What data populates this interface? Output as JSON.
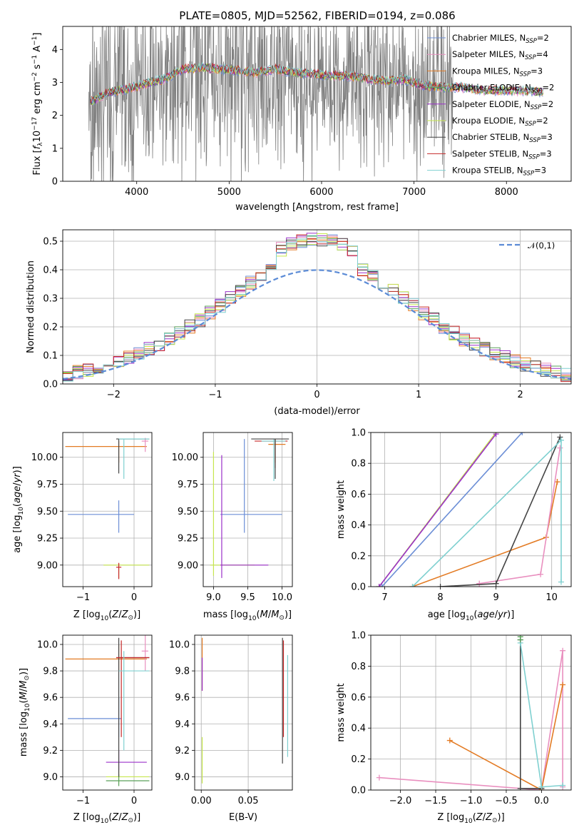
{
  "figure": {
    "title": "PLATE=0805, MJD=52562, FIBERID=0194, z=0.086"
  },
  "colors": {
    "Chabrier MILES": "#6b8ed6",
    "Salpeter MILES": "#e98fbf",
    "Kroupa MILES": "#e37b24",
    "Chabrier ELODIE": "#5aa05a",
    "Salpeter ELODIE": "#9b30c9",
    "Kroupa ELODIE": "#c6e64d",
    "Chabrier STELIB": "#444444",
    "Salpeter STELIB": "#c62828",
    "Kroupa STELIB": "#7fd0d0",
    "data": "#808080",
    "normal": "#5b8bd6"
  },
  "chart_data": [
    {
      "id": "spectrum",
      "type": "line",
      "xlabel": "wavelength [Angstrom, rest frame]",
      "ylabel": "Flux [f_λ 10^-17 erg cm^-2 s^-1 A^-1]",
      "xlim": [
        3200,
        8700
      ],
      "ylim": [
        0,
        4.7
      ],
      "xticks": [
        4000,
        5000,
        6000,
        7000,
        8000
      ],
      "yticks": [
        0,
        1,
        2,
        3,
        4
      ],
      "legend_position": "right",
      "legend": [
        {
          "model": "Chabrier MILES",
          "n": "2"
        },
        {
          "model": "Salpeter MILES",
          "n": "4"
        },
        {
          "model": "Kroupa MILES",
          "n": "3"
        },
        {
          "model": "Chabrier ELODIE",
          "n": "2"
        },
        {
          "model": "Salpeter ELODIE",
          "n": "2"
        },
        {
          "model": "Kroupa ELODIE",
          "n": "2"
        },
        {
          "model": "Chabrier STELIB",
          "n": "3"
        },
        {
          "model": "Salpeter STELIB",
          "n": "3"
        },
        {
          "model": "Kroupa STELIB",
          "n": "3"
        }
      ],
      "model_continuum": {
        "x": [
          3500,
          3700,
          3900,
          4100,
          4300,
          4500,
          4700,
          4900,
          5100,
          5300,
          5500,
          5700,
          5900,
          6100,
          6300,
          6500,
          6700,
          6900,
          7100,
          7300,
          7500,
          7800,
          8100,
          8400
        ],
        "y": [
          2.4,
          2.7,
          2.8,
          2.95,
          3.1,
          3.4,
          3.45,
          3.4,
          3.35,
          3.3,
          3.4,
          3.3,
          3.25,
          3.2,
          3.2,
          3.1,
          3.05,
          3.1,
          2.9,
          2.85,
          2.85,
          2.75,
          2.75,
          2.7
        ]
      }
    },
    {
      "id": "residuals",
      "type": "line",
      "xlabel": "(data-model)/error",
      "ylabel": "Normed distribution",
      "xlim": [
        -2.5,
        2.5
      ],
      "ylim": [
        0,
        0.54
      ],
      "xticks": [
        -2,
        -1,
        0,
        1,
        2
      ],
      "yticks": [
        0.0,
        0.1,
        0.2,
        0.3,
        0.4,
        0.5
      ],
      "grid": true,
      "legend_position": "top-right",
      "legend": "𝒩(0,1)"
    },
    {
      "id": "age-vs-Z",
      "type": "scatter",
      "xlabel": "Z [log10(Z/Z⊙)]",
      "ylabel": "age [log10(age/yr)]",
      "xlim": [
        -1.4,
        0.35
      ],
      "ylim": [
        8.8,
        10.23
      ],
      "xticks": [
        -1,
        0
      ],
      "yticks": [
        9.0,
        9.25,
        9.5,
        9.75,
        10.0
      ],
      "grid": true,
      "points": [
        {
          "model": "Chabrier MILES",
          "x": -0.3,
          "y": 9.47,
          "xe": [
            -1.3,
            0.0
          ],
          "ye": [
            9.3,
            9.6
          ]
        },
        {
          "model": "Kroupa MILES",
          "x": -0.3,
          "y": 10.1,
          "xe": [
            -1.35,
            0.25
          ],
          "ye": [
            9.95,
            10.15
          ]
        },
        {
          "model": "Salpeter MILES",
          "x": 0.22,
          "y": 10.15,
          "xe": [
            0.15,
            0.28
          ],
          "ye": [
            10.05,
            10.18
          ]
        },
        {
          "model": "Kroupa ELODIE",
          "x": -0.3,
          "y": 9.0,
          "xe": [
            -0.6,
            0.3
          ],
          "ye": [
            8.88,
            9.02
          ]
        },
        {
          "model": "Chabrier STELIB",
          "x": -0.3,
          "y": 10.17,
          "xe": [
            -0.35,
            0.3
          ],
          "ye": [
            9.85,
            10.17
          ]
        },
        {
          "model": "Kroupa STELIB",
          "x": -0.2,
          "y": 10.17,
          "xe": [
            -0.3,
            0.3
          ],
          "ye": [
            9.8,
            10.17
          ]
        },
        {
          "model": "Salpeter STELIB",
          "x": -0.3,
          "y": 8.98,
          "xe": [
            -0.35,
            -0.25
          ],
          "ye": [
            8.87,
            9.02
          ]
        }
      ]
    },
    {
      "id": "age-vs-mass",
      "type": "scatter",
      "xlabel": "mass [log10(M/M⊙)]",
      "ylabel": "",
      "xlim": [
        8.85,
        10.15
      ],
      "ylim": [
        8.8,
        10.23
      ],
      "xticks": [
        9.0,
        9.5,
        10.0
      ],
      "yticks": [
        9.0,
        9.25,
        9.5,
        9.75,
        10.0
      ],
      "grid": true,
      "points": [
        {
          "model": "Chabrier MILES",
          "x": 9.45,
          "y": 9.47,
          "xe": [
            9.1,
            10.0
          ],
          "ye": [
            9.3,
            10.17
          ]
        },
        {
          "model": "Kroupa ELODIE",
          "x": 9.0,
          "y": 9.0,
          "xe": [
            8.95,
            9.6
          ],
          "ye": [
            8.9,
            10.05
          ]
        },
        {
          "model": "Salpeter ELODIE",
          "x": 9.12,
          "y": 9.0,
          "xe": [
            9.1,
            9.8
          ],
          "ye": [
            8.88,
            10.02
          ]
        },
        {
          "model": "Kroupa MILES",
          "x": 9.9,
          "y": 10.12,
          "xe": [
            9.8,
            10.05
          ],
          "ye": [
            9.95,
            10.17
          ]
        },
        {
          "model": "Salpeter STELIB",
          "x": 9.9,
          "y": 10.15,
          "xe": [
            9.6,
            10.08
          ],
          "ye": [
            9.9,
            10.17
          ]
        },
        {
          "model": "Kroupa STELIB",
          "x": 9.88,
          "y": 10.15,
          "xe": [
            9.7,
            10.05
          ],
          "ye": [
            9.78,
            10.17
          ]
        },
        {
          "model": "Chabrier STELIB",
          "x": 9.9,
          "y": 10.17,
          "xe": [
            9.55,
            10.1
          ],
          "ye": [
            9.8,
            10.17
          ]
        }
      ]
    },
    {
      "id": "massweight-vs-age",
      "type": "line",
      "xlabel": "age [log10(age/yr)]",
      "ylabel": "mass weight",
      "xlim": [
        6.75,
        10.35
      ],
      "ylim": [
        0,
        1.0
      ],
      "xticks": [
        7,
        8,
        9,
        10
      ],
      "yticks": [
        0.0,
        0.2,
        0.4,
        0.6,
        0.8,
        1.0
      ],
      "grid": true,
      "series": [
        {
          "model": "Chabrier MILES",
          "x": [
            6.95,
            9.47
          ],
          "y": [
            0,
            1.0
          ]
        },
        {
          "model": "Kroupa ELODIE",
          "x": [
            6.9,
            9.0
          ],
          "y": [
            0,
            1.0
          ]
        },
        {
          "model": "Salpeter ELODIE",
          "x": [
            6.9,
            9.0
          ],
          "y": [
            0,
            0.99
          ]
        },
        {
          "model": "Kroupa MILES",
          "x": [
            7.5,
            9.9,
            10.1,
            10.1
          ],
          "y": [
            0,
            0.32,
            0.68,
            0.68
          ]
        },
        {
          "model": "Salpeter MILES",
          "x": [
            8.7,
            9.8,
            10.15
          ],
          "y": [
            0.02,
            0.08,
            0.9
          ]
        },
        {
          "model": "Chabrier STELIB",
          "x": [
            8.0,
            9.0,
            10.15
          ],
          "y": [
            0,
            0.02,
            0.97
          ]
        },
        {
          "model": "Kroupa STELIB",
          "x": [
            7.5,
            10.17,
            10.17
          ],
          "y": [
            0,
            0.95,
            0.03
          ]
        }
      ]
    },
    {
      "id": "mass-vs-Z",
      "type": "scatter",
      "xlabel": "Z [log10(Z/Z⊙)]",
      "ylabel": "mass [log10(M/M⊙)]",
      "xlim": [
        -1.4,
        0.35
      ],
      "ylim": [
        8.9,
        10.07
      ],
      "xticks": [
        -1,
        0
      ],
      "yticks": [
        9.0,
        9.2,
        9.4,
        9.6,
        9.8,
        10.0
      ],
      "grid": true,
      "points": [
        {
          "model": "Chabrier MILES",
          "x": -0.3,
          "y": 9.44,
          "xe": [
            -1.3,
            -0.25
          ],
          "ye": [
            9.3,
            9.6
          ]
        },
        {
          "model": "Kroupa MILES",
          "x": -0.3,
          "y": 9.89,
          "xe": [
            -1.35,
            0.25
          ],
          "ye": [
            9.8,
            10.0
          ]
        },
        {
          "model": "Salpeter MILES",
          "x": 0.22,
          "y": 9.95,
          "xe": [
            0.15,
            0.28
          ],
          "ye": [
            9.8,
            10.1
          ]
        },
        {
          "model": "Salpeter ELODIE",
          "x": -0.3,
          "y": 9.11,
          "xe": [
            -0.55,
            0.25
          ],
          "ye": [
            9.05,
            9.2
          ]
        },
        {
          "model": "Kroupa ELODIE",
          "x": -0.3,
          "y": 9.0,
          "xe": [
            -0.55,
            0.3
          ],
          "ye": [
            8.95,
            9.05
          ]
        },
        {
          "model": "Chabrier ELODIE",
          "x": -0.3,
          "y": 8.97,
          "xe": [
            -0.55,
            0.3
          ],
          "ye": [
            8.93,
            9.02
          ]
        },
        {
          "model": "Chabrier STELIB",
          "x": -0.3,
          "y": 9.9,
          "xe": [
            -0.35,
            0.3
          ],
          "ye": [
            9.0,
            10.05
          ]
        },
        {
          "model": "Salpeter STELIB",
          "x": -0.25,
          "y": 9.9,
          "xe": [
            -0.35,
            0.3
          ],
          "ye": [
            9.3,
            10.03
          ]
        },
        {
          "model": "Kroupa STELIB",
          "x": -0.2,
          "y": 9.8,
          "xe": [
            -0.3,
            0.3
          ],
          "ye": [
            9.2,
            9.95
          ]
        }
      ]
    },
    {
      "id": "mass-vs-EBV",
      "type": "scatter",
      "xlabel": "E(B-V)",
      "ylabel": "",
      "xlim": [
        -0.007,
        0.097
      ],
      "ylim": [
        8.9,
        10.07
      ],
      "xticks": [
        0.0,
        0.05
      ],
      "yticks": [
        9.0,
        9.2,
        9.4,
        9.6,
        9.8,
        10.0
      ],
      "grid": true,
      "points": [
        {
          "model": "Kroupa MILES",
          "x": 0.001,
          "ye": [
            9.65,
            10.05
          ]
        },
        {
          "model": "Salpeter ELODIE",
          "x": 0.001,
          "ye": [
            9.65,
            9.9
          ]
        },
        {
          "model": "Kroupa ELODIE",
          "x": 0.001,
          "ye": [
            8.95,
            9.3
          ]
        },
        {
          "model": "Chabrier STELIB",
          "x": 0.0865,
          "ye": [
            9.1,
            10.05
          ]
        },
        {
          "model": "Salpeter STELIB",
          "x": 0.0875,
          "ye": [
            9.3,
            10.03
          ]
        },
        {
          "model": "Kroupa STELIB",
          "x": 0.092,
          "ye": [
            9.15,
            9.92
          ]
        }
      ]
    },
    {
      "id": "massweight-vs-Z",
      "type": "line",
      "xlabel": "Z [log10(Z/Z⊙)]",
      "ylabel": "mass weight",
      "xlim": [
        -2.42,
        0.42
      ],
      "ylim": [
        0,
        1.0
      ],
      "xticks": [
        -2.0,
        -1.5,
        -1.0,
        -0.5,
        0.0
      ],
      "yticks": [
        0.0,
        0.2,
        0.4,
        0.6,
        0.8,
        1.0
      ],
      "grid": true,
      "series": [
        {
          "model": "Salpeter MILES",
          "x": [
            -2.3,
            0.0,
            0.3,
            0.3
          ],
          "y": [
            0.08,
            0.0,
            0.9,
            0.02
          ]
        },
        {
          "model": "Kroupa MILES",
          "x": [
            -1.3,
            0.0,
            0.3
          ],
          "y": [
            0.32,
            0.0,
            0.68
          ]
        },
        {
          "model": "Chabrier STELIB",
          "x": [
            -0.3,
            -0.3,
            0.0
          ],
          "y": [
            0.97,
            0.01,
            0.01
          ]
        },
        {
          "model": "Kroupa STELIB",
          "x": [
            -0.3,
            0.0,
            0.3
          ],
          "y": [
            0.95,
            0.02,
            0.03
          ]
        },
        {
          "model": "Chabrier ELODIE",
          "x": [
            -0.3,
            -0.3
          ],
          "y": [
            0.99,
            0.97
          ]
        }
      ]
    }
  ]
}
